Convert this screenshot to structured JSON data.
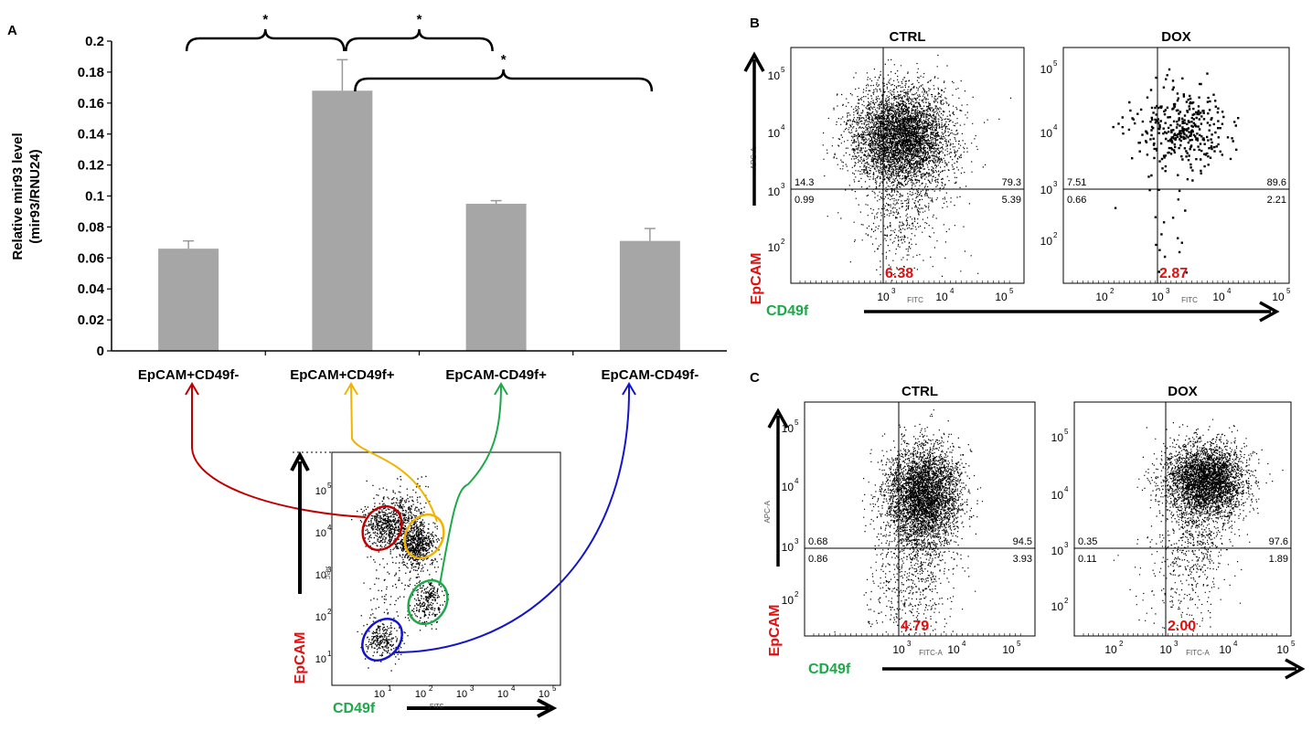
{
  "panels": {
    "A": "A",
    "B": "B",
    "C": "C"
  },
  "chart_data": {
    "type": "bar",
    "panel": "A",
    "categories": [
      "EpCAM+CD49f-",
      "EpCAM+CD49f+",
      "EpCAM-CD49f+",
      "EpCAM-CD49f-"
    ],
    "values": [
      0.066,
      0.168,
      0.095,
      0.071
    ],
    "errors": [
      0.005,
      0.02,
      0.002,
      0.008
    ],
    "ylabel_line1": "Relative mir93 level",
    "ylabel_line2": "(mir93/RNU24)",
    "ylim": [
      0,
      0.2
    ],
    "yticks": [
      "0",
      "0.02",
      "0.04",
      "0.06",
      "0.08",
      "0.1",
      "0.12",
      "0.14",
      "0.16",
      "0.18",
      "0.2"
    ],
    "bar_color": "#a6a6a6",
    "significance": [
      {
        "from": 0,
        "to": 1,
        "label": "*"
      },
      {
        "from": 1,
        "to": 2,
        "label": "*"
      },
      {
        "from": 1,
        "to": 3,
        "label": "*"
      }
    ]
  },
  "gating_plot": {
    "ylabel": "EpCAM",
    "xlabel": "CD49f",
    "y_axis_small": "APC",
    "x_axis_small": "FITC",
    "gates": [
      {
        "population": "EpCAM+CD49f-",
        "color": "#c00000"
      },
      {
        "population": "EpCAM+CD49f+",
        "color": "#f0b400"
      },
      {
        "population": "EpCAM-CD49f+",
        "color": "#1fa84a"
      },
      {
        "population": "EpCAM-CD49f-",
        "color": "#1414cc"
      }
    ]
  },
  "flow_panels": {
    "marker_y": "EpCAM",
    "marker_x": "CD49f",
    "marker_y_color": "#e01010",
    "marker_x_color": "#1fa84a",
    "highlight_color": "#e01010",
    "log_ticks": [
      "10",
      "10",
      "10",
      "10",
      "10"
    ],
    "log_exps": [
      "1",
      "2",
      "3",
      "4",
      "5"
    ],
    "B": {
      "CTRL": {
        "title": "CTRL",
        "ul": "14.3",
        "ur": "79.3",
        "ll": "0.99",
        "lr": "5.39",
        "highlight": "6.38",
        "yaxis": "APC-A",
        "xaxis": "FITC"
      },
      "DOX": {
        "title": "DOX",
        "ul": "7.51",
        "ur": "89.6",
        "ll": "0.66",
        "lr": "2.21",
        "highlight": "2.87",
        "yaxis": "",
        "xaxis": "FITC"
      }
    },
    "C": {
      "CTRL": {
        "title": "CTRL",
        "ul": "0.68",
        "ur": "94.5",
        "ll": "0.86",
        "lr": "3.93",
        "highlight": "4.79",
        "yaxis": "APC-A",
        "xaxis": "FITC-A"
      },
      "DOX": {
        "title": "DOX",
        "ul": "0.35",
        "ur": "97.6",
        "ll": "0.11",
        "lr": "1.89",
        "highlight": "2.00",
        "yaxis": "",
        "xaxis": "FITC-A"
      }
    }
  }
}
